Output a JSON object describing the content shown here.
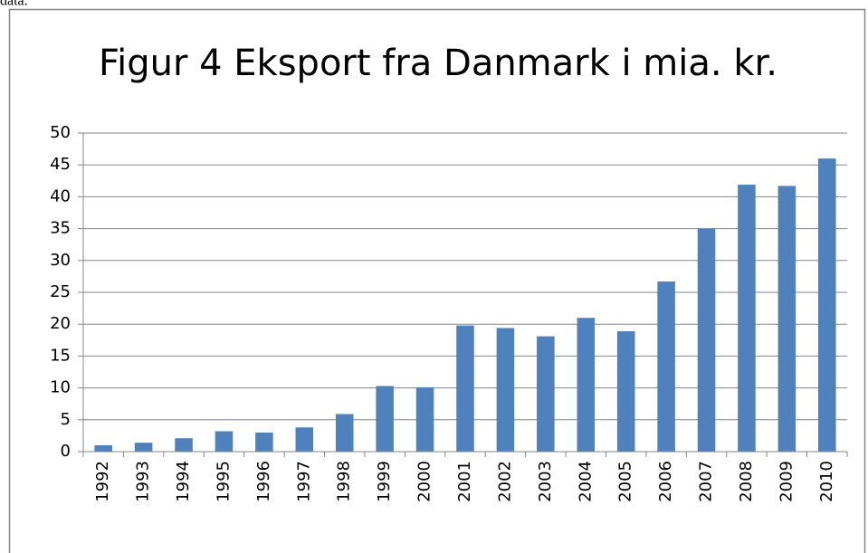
{
  "header": "data.",
  "chart_data": {
    "type": "bar",
    "title": "Figur 4 Eksport fra Danmark i mia. kr.",
    "categories": [
      "1992",
      "1993",
      "1994",
      "1995",
      "1996",
      "1997",
      "1998",
      "1999",
      "2000",
      "2001",
      "2002",
      "2003",
      "2004",
      "2005",
      "2006",
      "2007",
      "2008",
      "2009",
      "2010"
    ],
    "values": [
      1.0,
      1.4,
      2.1,
      3.2,
      3.0,
      3.8,
      5.9,
      10.3,
      10.1,
      19.8,
      19.4,
      18.1,
      21.0,
      18.9,
      26.7,
      35.0,
      41.9,
      41.7,
      46.0
    ],
    "color": "#4f81bd",
    "ylim": [
      0,
      50
    ],
    "yticks": [
      0,
      5,
      10,
      15,
      20,
      25,
      30,
      35,
      40,
      45,
      50
    ],
    "grid": true
  }
}
